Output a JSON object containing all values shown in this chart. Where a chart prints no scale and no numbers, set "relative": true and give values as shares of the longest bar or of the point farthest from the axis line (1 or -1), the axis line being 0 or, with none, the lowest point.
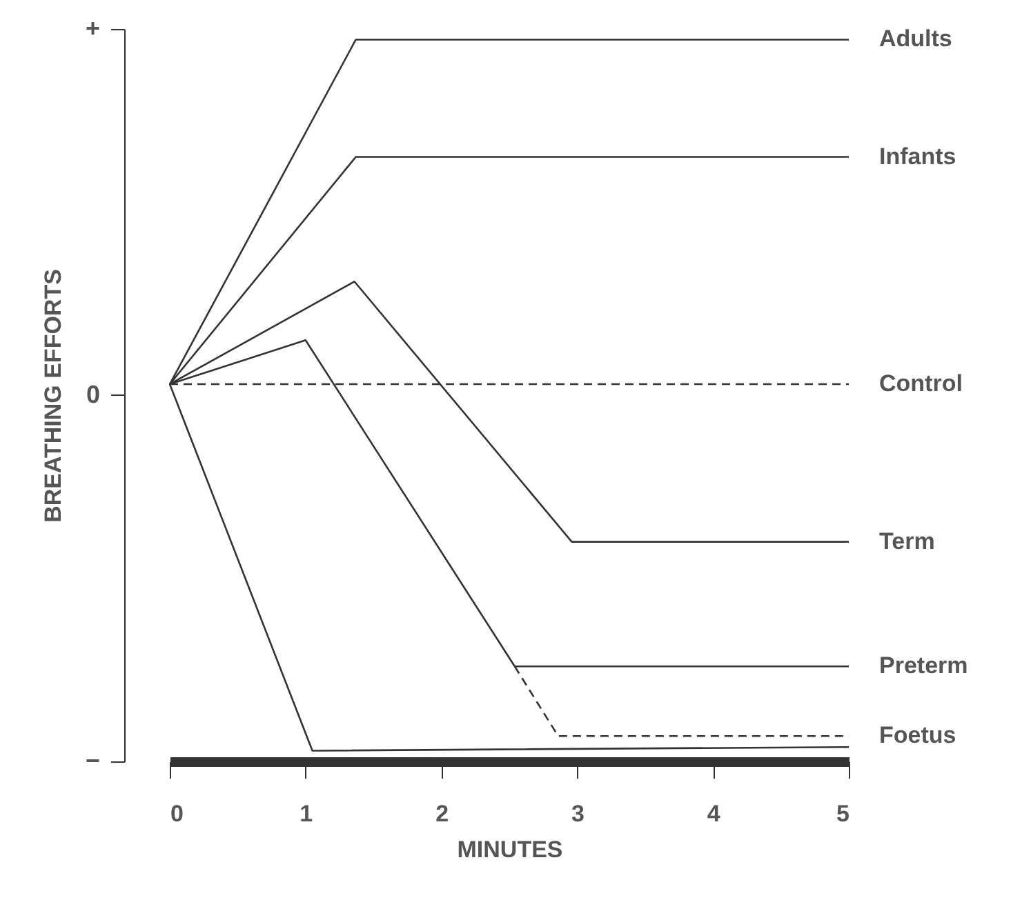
{
  "chart_data": {
    "type": "line",
    "xlabel": "MINUTES",
    "ylabel": "BREATHING EFFORTS",
    "xlim": [
      0,
      5
    ],
    "xticks": [
      0,
      1,
      2,
      3,
      4,
      5
    ],
    "relative": true,
    "annotations": [
      "+",
      "0",
      "−"
    ],
    "grid": false,
    "legend": false,
    "marker": "none",
    "series": [
      {
        "name": "Adults",
        "color": "#333333",
        "line_style": "solid",
        "x": [
          0,
          1.37,
          5
        ],
        "values": [
          0,
          0.94,
          0.94
        ]
      },
      {
        "name": "Infants",
        "color": "#333333",
        "line_style": "solid",
        "x": [
          0,
          1.37,
          5
        ],
        "values": [
          0,
          0.62,
          0.62
        ]
      },
      {
        "name": "Control",
        "color": "#333333",
        "line_style": "dashed",
        "x": [
          0,
          5
        ],
        "values": [
          0,
          0
        ]
      },
      {
        "name": "Term",
        "color": "#333333",
        "line_style": "solid",
        "x": [
          0,
          1.36,
          2.96,
          5
        ],
        "values": [
          0,
          0.28,
          -0.43,
          -0.43
        ]
      },
      {
        "name": "Preterm",
        "color": "#333333",
        "line_style": "solid",
        "x": [
          0,
          1.0,
          2.54,
          5
        ],
        "values": [
          0,
          0.12,
          -0.77,
          -0.77
        ]
      },
      {
        "name": "Foetus",
        "color": "#333333",
        "line_style": "dashed",
        "x": [
          2.54,
          2.86,
          5
        ],
        "values": [
          -0.77,
          -0.96,
          -0.96
        ]
      },
      {
        "color": "#333333",
        "line_style": "solid",
        "x": [
          0,
          1.05,
          5
        ],
        "values": [
          0,
          -1.0,
          -0.99
        ]
      }
    ]
  }
}
